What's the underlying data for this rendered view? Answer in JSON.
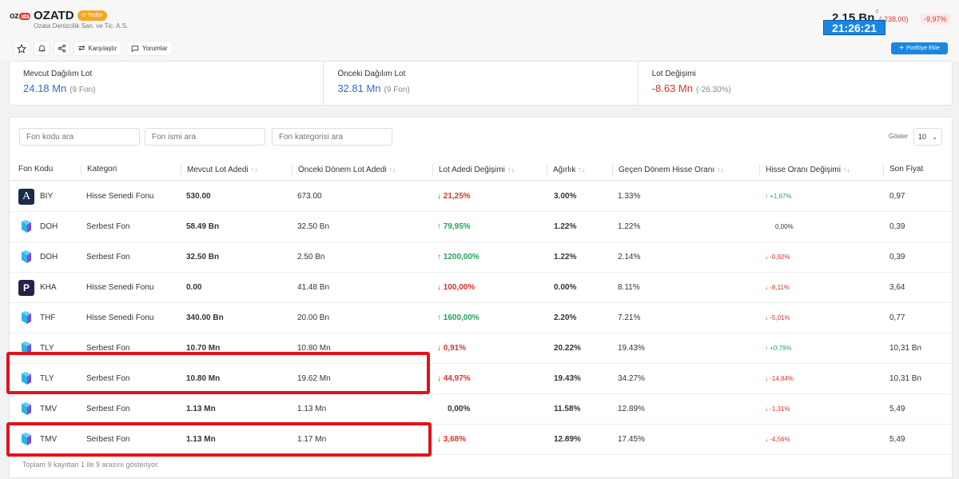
{
  "header": {
    "logo_text": "oz",
    "logo_badge": "ata",
    "ticker": "OZATD",
    "badge": "Tedbir",
    "company": "Ozata Denizcilik San. ve Tic. A.S.",
    "price": "2.15 Bn",
    "change": "(-238,00)",
    "change_pct": "-9,97%",
    "clock": "21:26:21"
  },
  "actions": {
    "compare": "Karşılaştır",
    "comments": "Yorumlar",
    "add_portfolio": "Portföye Ekle"
  },
  "stats": [
    {
      "label": "Mevcut Dağılım Lot",
      "value": "24.18 Mn",
      "sub": "(9 Fon)"
    },
    {
      "label": "Önceki Dağılım Lot",
      "value": "32.81 Mn",
      "sub": "(9 Fon)"
    },
    {
      "label": "Lot Değişimi",
      "value": "-8.63 Mn",
      "sub": "(-26.30%)"
    }
  ],
  "filters": {
    "fund_code": "Fon kodu ara",
    "fund_name": "Fon ismi ara",
    "fund_category": "Fon kategorisi ara",
    "show_label": "Göster",
    "show_value": "10"
  },
  "columns": [
    "Fon Kodu",
    "Kategori",
    "Mevcut Lot Adedi",
    "Önceki Dönem Lot Adedi",
    "Lot Adedi Değişimi",
    "Ağırlık",
    "Geçen Dönem Hisse Oranı",
    "Hisse Oranı Değişimi",
    "Son Fiyat"
  ],
  "rows": [
    {
      "icon": "a",
      "code": "BIY",
      "category": "Hisse Senedi Fonu",
      "current": "530.00",
      "previous": "673.00",
      "lot_dir": "down",
      "lot_change": "21,25%",
      "weight": "3.00%",
      "prev_ratio": "1.33%",
      "ratio_dir": "up",
      "ratio_change": "+1,67%",
      "price": "0,97"
    },
    {
      "icon": "g",
      "code": "DOH",
      "category": "Serbest Fon",
      "current": "58.49 Bn",
      "previous": "32.50 Bn",
      "lot_dir": "up",
      "lot_change": "79,95%",
      "weight": "1.22%",
      "prev_ratio": "1.22%",
      "ratio_dir": "none",
      "ratio_change": "0,00%",
      "price": "0,39"
    },
    {
      "icon": "g",
      "code": "DOH",
      "category": "Serbest Fon",
      "current": "32.50 Bn",
      "previous": "2.50 Bn",
      "lot_dir": "up",
      "lot_change": "1200,00%",
      "weight": "1.22%",
      "prev_ratio": "2.14%",
      "ratio_dir": "down",
      "ratio_change": "-0,92%",
      "price": "0,39"
    },
    {
      "icon": "p",
      "code": "KHA",
      "category": "Hisse Senedi Fonu",
      "current": "0.00",
      "previous": "41.48 Bn",
      "lot_dir": "down",
      "lot_change": "100,00%",
      "weight": "0.00%",
      "prev_ratio": "8.11%",
      "ratio_dir": "down",
      "ratio_change": "-8,11%",
      "price": "3,64"
    },
    {
      "icon": "g",
      "code": "THF",
      "category": "Hisse Senedi Fonu",
      "current": "340.00 Bn",
      "previous": "20.00 Bn",
      "lot_dir": "up",
      "lot_change": "1600,00%",
      "weight": "2.20%",
      "prev_ratio": "7.21%",
      "ratio_dir": "down",
      "ratio_change": "-5,01%",
      "price": "0,77"
    },
    {
      "icon": "g",
      "code": "TLY",
      "category": "Serbest Fon",
      "current": "10.70 Mn",
      "previous": "10.80 Mn",
      "lot_dir": "down",
      "lot_change": "0,91%",
      "weight": "20.22%",
      "prev_ratio": "19.43%",
      "ratio_dir": "up",
      "ratio_change": "+0,79%",
      "price": "10,31 Bn"
    },
    {
      "icon": "g",
      "code": "TLY",
      "category": "Serbest Fon",
      "current": "10.80 Mn",
      "previous": "19.62 Mn",
      "lot_dir": "down",
      "lot_change": "44,97%",
      "weight": "19.43%",
      "prev_ratio": "34.27%",
      "ratio_dir": "down",
      "ratio_change": "-14,84%",
      "price": "10,31 Bn"
    },
    {
      "icon": "g",
      "code": "TMV",
      "category": "Serbest Fon",
      "current": "1.13 Mn",
      "previous": "1.13 Mn",
      "lot_dir": "none",
      "lot_change": "0,00%",
      "weight": "11.58%",
      "prev_ratio": "12.89%",
      "ratio_dir": "down",
      "ratio_change": "-1,31%",
      "price": "5,49"
    },
    {
      "icon": "g",
      "code": "TMV",
      "category": "Serbest Fon",
      "current": "1.13 Mn",
      "previous": "1.17 Mn",
      "lot_dir": "down",
      "lot_change": "3,68%",
      "weight": "12.89%",
      "prev_ratio": "17.45%",
      "ratio_dir": "down",
      "ratio_change": "-4,56%",
      "price": "5,49"
    }
  ],
  "footer": "Toplam 9 kayıttan 1 ile 9 arasını gösteriyor."
}
